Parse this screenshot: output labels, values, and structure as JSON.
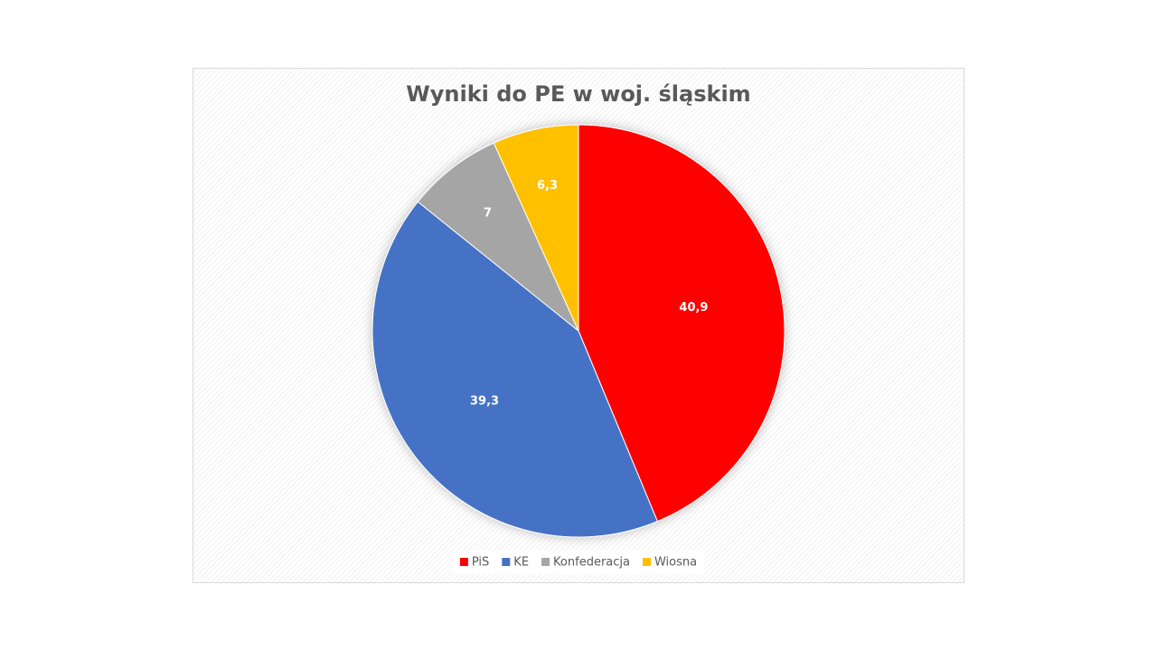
{
  "chart_data": {
    "type": "pie",
    "title": "Wyniki do PE w woj. śląskim",
    "categories": [
      "PiS",
      "KE",
      "Konfederacja",
      "Wiosna"
    ],
    "values": [
      40.9,
      39.3,
      7,
      6.3
    ],
    "value_labels": [
      "40,9",
      "39,3",
      "7",
      "6,3"
    ],
    "colors": [
      "#ff0000",
      "#4472c4",
      "#a5a5a5",
      "#ffc000"
    ],
    "legend": "bottom"
  }
}
